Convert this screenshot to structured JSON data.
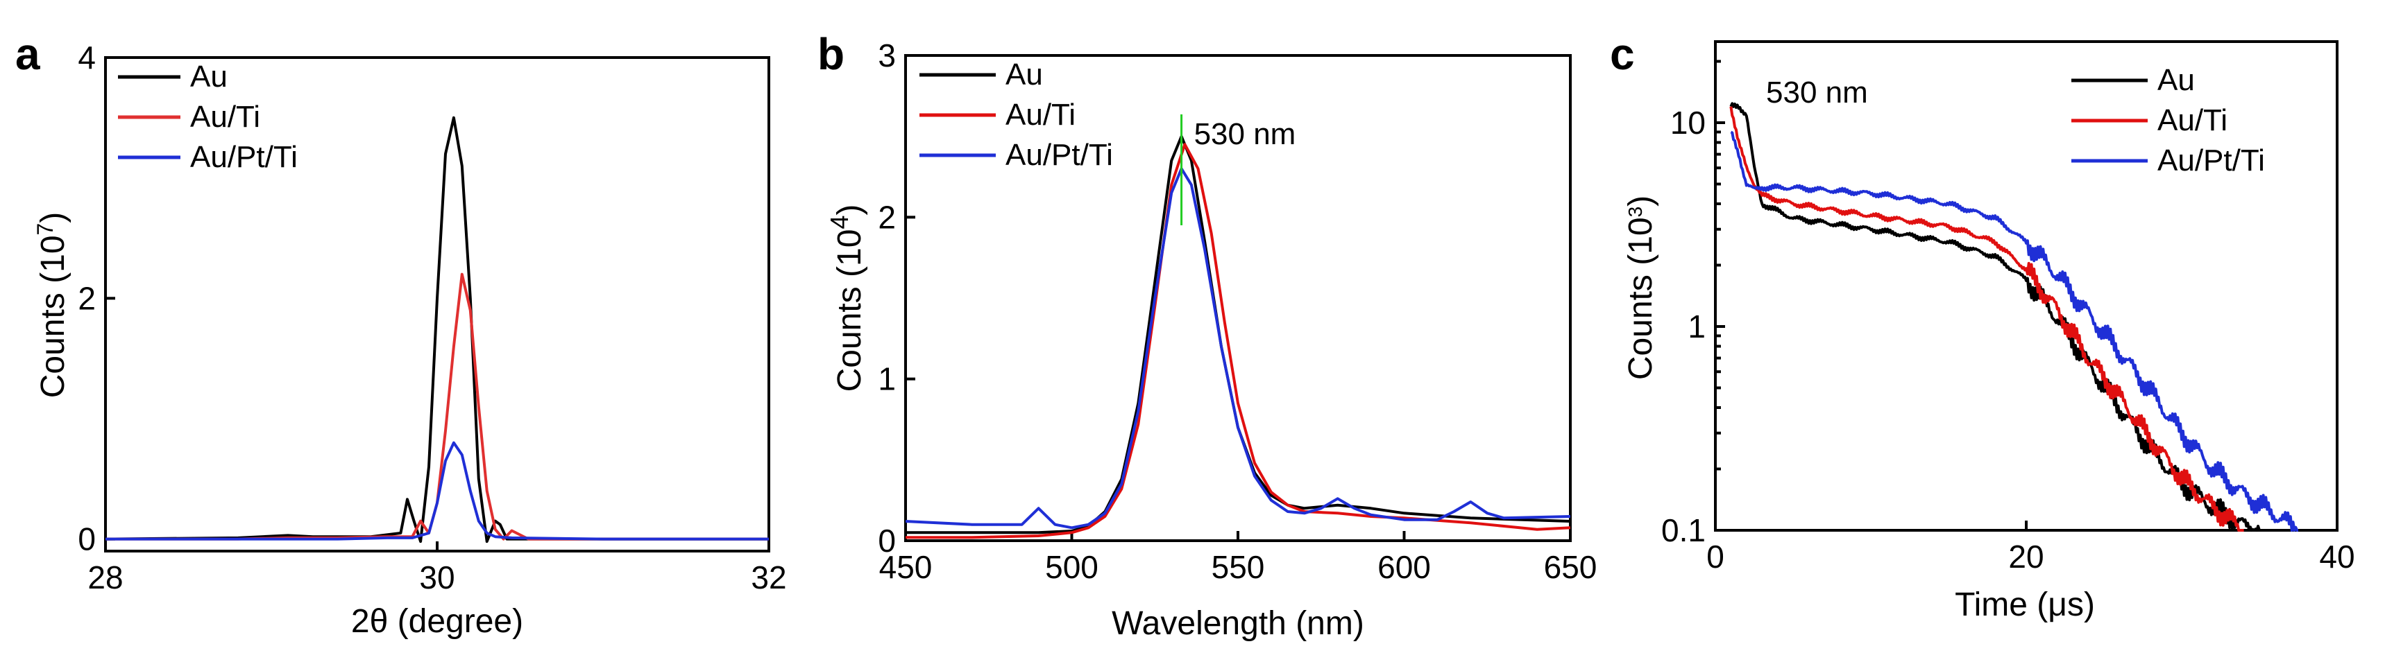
{
  "chart_data": [
    {
      "panel": "a",
      "type": "line",
      "xlabel": "2θ (degree)",
      "ylabel_base": "Counts (10",
      "ylabel_exp": "7",
      "ylabel_close": ")",
      "xlim": [
        28,
        32
      ],
      "ylim": [
        -0.1,
        4
      ],
      "yscale": "linear",
      "xticks": [
        28,
        30,
        32
      ],
      "yticks": [
        0,
        2,
        4
      ],
      "legend": [
        "Au",
        "Au/Ti",
        "Au/Pt/Ti"
      ],
      "legend_position": "top-left",
      "series": [
        {
          "name": "Au",
          "color": "#000000",
          "x": [
            28.0,
            28.8,
            29.1,
            29.25,
            29.4,
            29.6,
            29.78,
            29.82,
            29.86,
            29.9,
            29.95,
            30.0,
            30.05,
            30.1,
            30.15,
            30.2,
            30.25,
            30.3,
            30.35,
            30.38,
            30.42,
            30.5,
            31.0,
            32.0
          ],
          "y": [
            0.0,
            0.01,
            0.03,
            0.02,
            0.02,
            0.02,
            0.05,
            0.33,
            0.15,
            -0.02,
            0.6,
            2.0,
            3.2,
            3.5,
            3.1,
            2.0,
            0.5,
            -0.02,
            0.15,
            0.12,
            0.0,
            0.0,
            0.0,
            0.0
          ]
        },
        {
          "name": "Au/Ti",
          "color": "#e03030",
          "x": [
            28.0,
            28.8,
            29.1,
            29.4,
            29.7,
            29.85,
            29.9,
            29.95,
            30.0,
            30.05,
            30.1,
            30.15,
            30.2,
            30.25,
            30.3,
            30.35,
            30.4,
            30.45,
            30.55,
            31.0,
            32.0
          ],
          "y": [
            0.0,
            0.0,
            0.01,
            0.01,
            0.02,
            0.02,
            0.15,
            0.05,
            0.3,
            0.9,
            1.6,
            2.2,
            1.9,
            1.1,
            0.4,
            0.08,
            0.0,
            0.07,
            0.0,
            0.0,
            0.0
          ]
        },
        {
          "name": "Au/Pt/Ti",
          "color": "#1f2fd6",
          "x": [
            28.0,
            29.4,
            29.7,
            29.85,
            29.95,
            30.0,
            30.05,
            30.1,
            30.15,
            30.2,
            30.25,
            30.3,
            30.35,
            30.45,
            31.0,
            32.0
          ],
          "y": [
            0.0,
            0.0,
            0.01,
            0.01,
            0.05,
            0.3,
            0.65,
            0.8,
            0.7,
            0.4,
            0.15,
            0.05,
            0.02,
            0.01,
            0.0,
            0.0
          ]
        }
      ]
    },
    {
      "panel": "b",
      "type": "line",
      "xlabel": "Wavelength (nm)",
      "ylabel_base": "Counts (10",
      "ylabel_exp": "4",
      "ylabel_close": ")",
      "xlim": [
        450,
        650
      ],
      "ylim": [
        0,
        3
      ],
      "yscale": "linear",
      "xticks": [
        450,
        500,
        550,
        600,
        650
      ],
      "yticks": [
        0,
        1,
        2,
        3
      ],
      "legend": [
        "Au",
        "Au/Ti",
        "Au/Pt/Ti"
      ],
      "legend_position": "top-left",
      "annotation": "530 nm",
      "annotation_x": 533,
      "marker_color": "#22cc22",
      "series": [
        {
          "name": "Au",
          "color": "#000000",
          "x": [
            450,
            470,
            490,
            500,
            505,
            510,
            515,
            520,
            525,
            530,
            533,
            536,
            540,
            545,
            550,
            555,
            560,
            565,
            570,
            580,
            590,
            600,
            620,
            650
          ],
          "y": [
            0.05,
            0.05,
            0.05,
            0.06,
            0.09,
            0.18,
            0.38,
            0.85,
            1.6,
            2.35,
            2.5,
            2.35,
            1.85,
            1.2,
            0.7,
            0.42,
            0.28,
            0.22,
            0.2,
            0.22,
            0.2,
            0.17,
            0.14,
            0.12
          ]
        },
        {
          "name": "Au/Ti",
          "color": "#e01010",
          "x": [
            450,
            470,
            490,
            500,
            505,
            510,
            515,
            520,
            525,
            530,
            534,
            538,
            542,
            546,
            550,
            555,
            560,
            565,
            570,
            580,
            590,
            600,
            620,
            640,
            650
          ],
          "y": [
            0.02,
            0.02,
            0.03,
            0.05,
            0.08,
            0.15,
            0.32,
            0.72,
            1.45,
            2.2,
            2.45,
            2.3,
            1.9,
            1.35,
            0.85,
            0.48,
            0.3,
            0.22,
            0.18,
            0.17,
            0.15,
            0.14,
            0.11,
            0.07,
            0.08
          ]
        },
        {
          "name": "Au/Pt/Ti",
          "color": "#1f2fd6",
          "x": [
            450,
            470,
            485,
            490,
            495,
            500,
            505,
            510,
            515,
            520,
            525,
            530,
            533,
            536,
            540,
            545,
            550,
            555,
            560,
            565,
            570,
            575,
            580,
            585,
            590,
            600,
            610,
            615,
            620,
            625,
            630,
            650
          ],
          "y": [
            0.12,
            0.1,
            0.1,
            0.2,
            0.1,
            0.08,
            0.1,
            0.17,
            0.35,
            0.8,
            1.5,
            2.15,
            2.3,
            2.2,
            1.8,
            1.2,
            0.7,
            0.4,
            0.25,
            0.18,
            0.17,
            0.2,
            0.26,
            0.2,
            0.16,
            0.13,
            0.13,
            0.18,
            0.24,
            0.17,
            0.14,
            0.15
          ]
        }
      ]
    },
    {
      "panel": "c",
      "type": "line",
      "xlabel": "Time (μs)",
      "ylabel_base": "Counts (10",
      "ylabel_exp": "3",
      "ylabel_close": ")",
      "xlim": [
        0,
        40
      ],
      "ylim": [
        0.1,
        25
      ],
      "yscale": "log",
      "xticks": [
        0,
        20,
        40
      ],
      "yticks": [
        0.1,
        1,
        10
      ],
      "ytick_labels": [
        "0.1",
        "1",
        "10"
      ],
      "legend": [
        "Au",
        "Au/Ti",
        "Au/Pt/Ti"
      ],
      "legend_position": "top-right",
      "annotation": "530 nm",
      "series": [
        {
          "name": "Au",
          "color": "#000000",
          "x": [
            1.0,
            1.5,
            2.0,
            2.5,
            3.0,
            5,
            10,
            15,
            18,
            20,
            22,
            24,
            26,
            28,
            30,
            32,
            34,
            35
          ],
          "y": [
            12,
            12,
            11,
            6,
            4,
            3.4,
            3.0,
            2.6,
            2.2,
            1.7,
            1.1,
            0.65,
            0.4,
            0.25,
            0.17,
            0.13,
            0.105,
            0.1
          ]
        },
        {
          "name": "Au/Ti",
          "color": "#e01010",
          "x": [
            1.0,
            1.5,
            2.0,
            2.5,
            3.0,
            5,
            10,
            15,
            18,
            20,
            22,
            24,
            26,
            28,
            30,
            32,
            34
          ],
          "y": [
            12,
            8,
            6,
            5,
            4.4,
            4.0,
            3.5,
            3.1,
            2.6,
            1.9,
            1.2,
            0.7,
            0.45,
            0.28,
            0.18,
            0.13,
            0.1
          ]
        },
        {
          "name": "Au/Pt/Ti",
          "color": "#1f2fd6",
          "x": [
            1.0,
            1.5,
            2.0,
            2.5,
            3.0,
            5,
            10,
            15,
            18,
            20,
            22,
            24,
            26,
            28,
            30,
            32,
            34,
            36,
            37.5
          ],
          "y": [
            9,
            7,
            5,
            4.7,
            4.8,
            4.8,
            4.5,
            4.0,
            3.4,
            2.6,
            1.8,
            1.15,
            0.75,
            0.48,
            0.3,
            0.2,
            0.15,
            0.12,
            0.1
          ]
        }
      ]
    }
  ]
}
